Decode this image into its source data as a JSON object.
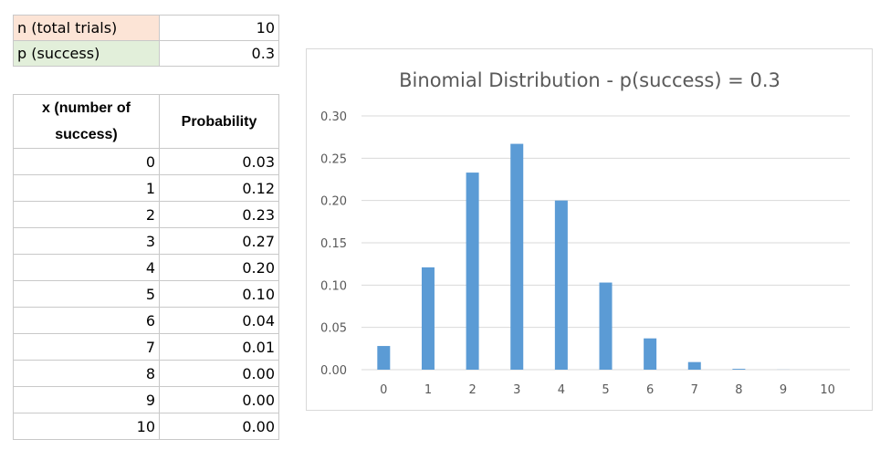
{
  "params": {
    "n_label": "n (total trials)",
    "n_value": "10",
    "p_label": "p (success)",
    "p_value": "0.3"
  },
  "table": {
    "header_x": "x (number of success)",
    "header_p": "Probability",
    "rows": [
      {
        "x": "0",
        "p": "0.03"
      },
      {
        "x": "1",
        "p": "0.12"
      },
      {
        "x": "2",
        "p": "0.23"
      },
      {
        "x": "3",
        "p": "0.27"
      },
      {
        "x": "4",
        "p": "0.20"
      },
      {
        "x": "5",
        "p": "0.10"
      },
      {
        "x": "6",
        "p": "0.04"
      },
      {
        "x": "7",
        "p": "0.01"
      },
      {
        "x": "8",
        "p": "0.00"
      },
      {
        "x": "9",
        "p": "0.00"
      },
      {
        "x": "10",
        "p": "0.00"
      }
    ]
  },
  "chart_data": {
    "type": "bar",
    "title": "Binomial Distribution - p(success) = 0.3",
    "xlabel": "",
    "ylabel": "",
    "categories": [
      "0",
      "1",
      "2",
      "3",
      "4",
      "5",
      "6",
      "7",
      "8",
      "9",
      "10"
    ],
    "values": [
      0.028,
      0.121,
      0.233,
      0.267,
      0.2,
      0.103,
      0.037,
      0.009,
      0.001,
      0.0001,
      0.0
    ],
    "ylim": [
      0,
      0.3
    ],
    "yticks": [
      "0.00",
      "0.05",
      "0.10",
      "0.15",
      "0.20",
      "0.25",
      "0.30"
    ],
    "grid": true,
    "legend": "none",
    "bar_color": "#5b9bd5",
    "grid_color": "#d9d9d9"
  }
}
